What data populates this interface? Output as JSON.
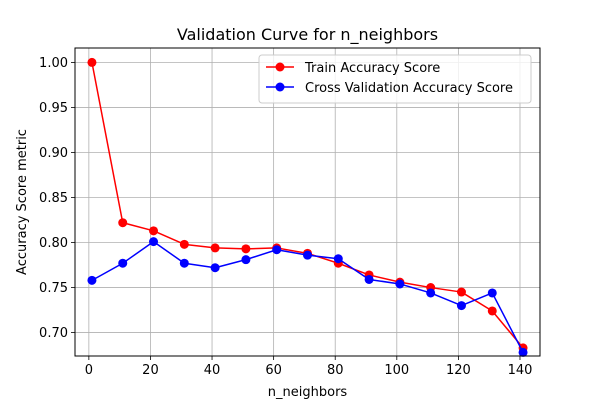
{
  "chart_data": {
    "type": "line",
    "title": "Validation Curve for n_neighbors",
    "xlabel": "n_neighbors",
    "ylabel": "Accuracy Score metric",
    "x": [
      1,
      11,
      21,
      31,
      41,
      51,
      61,
      71,
      81,
      91,
      101,
      111,
      121,
      131,
      141
    ],
    "xlim": [
      -4.5,
      146.5
    ],
    "ylim": [
      0.674,
      1.016
    ],
    "xticks": [
      0,
      20,
      40,
      60,
      80,
      100,
      120,
      140
    ],
    "xtick_labels": [
      "0",
      "20",
      "40",
      "60",
      "80",
      "100",
      "120",
      "140"
    ],
    "yticks": [
      0.7,
      0.75,
      0.8,
      0.85,
      0.9,
      0.95,
      1.0
    ],
    "ytick_labels": [
      "0.70",
      "0.75",
      "0.80",
      "0.85",
      "0.90",
      "0.95",
      "1.00"
    ],
    "grid": true,
    "legend_position": "top-right",
    "series": [
      {
        "name": "Train Accuracy Score",
        "color": "#ff0000",
        "marker": "circle",
        "values": [
          1.0,
          0.822,
          0.813,
          0.798,
          0.794,
          0.793,
          0.794,
          0.788,
          0.777,
          0.764,
          0.756,
          0.75,
          0.745,
          0.724,
          0.683
        ]
      },
      {
        "name": "Cross Validation Accuracy Score",
        "color": "#0000ff",
        "marker": "circle",
        "values": [
          0.758,
          0.777,
          0.801,
          0.777,
          0.772,
          0.781,
          0.792,
          0.786,
          0.782,
          0.759,
          0.754,
          0.744,
          0.73,
          0.744,
          0.678
        ]
      }
    ]
  }
}
